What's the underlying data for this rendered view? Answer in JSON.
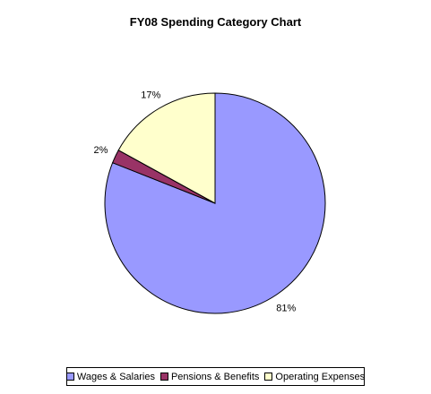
{
  "chart_data": {
    "type": "pie",
    "title": "FY08 Spending Category Chart",
    "slices": [
      {
        "label": "Wages & Salaries",
        "value": 81,
        "value_label": "81%",
        "color": "#9999ff"
      },
      {
        "label": "Pensions & Benefits",
        "value": 2,
        "value_label": "2%",
        "color": "#993366"
      },
      {
        "label": "Operating Expenses",
        "value": 17,
        "value_label": "17%",
        "color": "#ffffcc"
      }
    ],
    "legend_position": "bottom",
    "start_angle": "12 o'clock",
    "direction": "clockwise"
  }
}
